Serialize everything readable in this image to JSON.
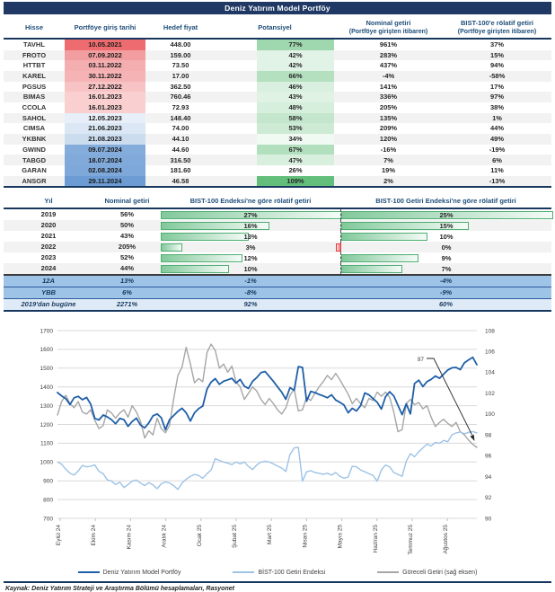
{
  "title": "Deniz Yatırım Model Portföy",
  "portfolio_table": {
    "headers": {
      "hisse": "Hisse",
      "giris": "Portföye giriş tarihi",
      "hedef": "Hedef fiyat",
      "potansiyel": "Potansiyel",
      "nominal_1": "Nominal getiri",
      "nominal_2": "(Portföye girişten itibaren)",
      "relatif_1": "BIST-100'e rölatif getiri",
      "relatif_2": "(Portföye girişten itibaren)"
    },
    "rows": [
      {
        "ticker": "TAVHL",
        "date": "10.05.2021",
        "date_color": "#EE6C6F",
        "target": "448.00",
        "potential": "77%",
        "pot_color": "#9FD7AE",
        "nominal": "961%",
        "relative": "37%"
      },
      {
        "ticker": "FROTO",
        "date": "07.09.2022",
        "date_color": "#F29D9F",
        "target": "159.00",
        "potential": "42%",
        "pot_color": "#E1F2E6",
        "nominal": "283%",
        "relative": "15%"
      },
      {
        "ticker": "HTTBT",
        "date": "03.11.2022",
        "date_color": "#F5AEB0",
        "target": "73.50",
        "potential": "42%",
        "pot_color": "#E1F2E6",
        "nominal": "437%",
        "relative": "94%"
      },
      {
        "ticker": "KAREL",
        "date": "30.11.2022",
        "date_color": "#F5B3B5",
        "target": "17.00",
        "potential": "66%",
        "pot_color": "#B5E0C0",
        "nominal": "-4%",
        "relative": "-58%"
      },
      {
        "ticker": "PGSUS",
        "date": "27.12.2022",
        "date_color": "#F8C3C4",
        "target": "362.50",
        "potential": "46%",
        "pot_color": "#D9EFDF",
        "nominal": "141%",
        "relative": "17%"
      },
      {
        "ticker": "BIMAS",
        "date": "16.01.2023",
        "date_color": "#F9CFD0",
        "target": "760.46",
        "potential": "43%",
        "pot_color": "#DFF2E4",
        "nominal": "336%",
        "relative": "97%"
      },
      {
        "ticker": "CCOLA",
        "date": "16.01.2023",
        "date_color": "#F9CFD0",
        "target": "72.93",
        "potential": "48%",
        "pot_color": "#D6EEDC",
        "nominal": "205%",
        "relative": "38%"
      },
      {
        "ticker": "SAHOL",
        "date": "12.05.2023",
        "date_color": "#E9EFF8",
        "target": "148.40",
        "potential": "58%",
        "pot_color": "#C3E6CC",
        "nominal": "135%",
        "relative": "1%"
      },
      {
        "ticker": "CIMSA",
        "date": "21.06.2023",
        "date_color": "#DBE7F4",
        "target": "74.00",
        "potential": "53%",
        "pot_color": "#CCEAD4",
        "nominal": "209%",
        "relative": "44%"
      },
      {
        "ticker": "YKBNK",
        "date": "21.08.2023",
        "date_color": "#CBDCEF",
        "target": "44.10",
        "potential": "34%",
        "pot_color": "#F0F9F2",
        "nominal": "120%",
        "relative": "49%"
      },
      {
        "ticker": "GWIND",
        "date": "09.07.2024",
        "date_color": "#85ADDB",
        "target": "44.60",
        "potential": "67%",
        "pot_color": "#B2DFBE",
        "nominal": "-16%",
        "relative": "-19%"
      },
      {
        "ticker": "TABGD",
        "date": "18.07.2024",
        "date_color": "#81AADA",
        "target": "316.50",
        "potential": "47%",
        "pot_color": "#D8EFDE",
        "nominal": "7%",
        "relative": "6%"
      },
      {
        "ticker": "GARAN",
        "date": "02.08.2024",
        "date_color": "#7EA8D9",
        "target": "181.60",
        "potential": "26%",
        "pot_color": "#FDFEFD",
        "nominal": "19%",
        "relative": "11%"
      },
      {
        "ticker": "ANSGR",
        "date": "29.11.2024",
        "date_color": "#6C9CD3",
        "target": "46.58",
        "potential": "109%",
        "pot_color": "#63BE7B",
        "nominal": "2%",
        "relative": "-13%"
      }
    ]
  },
  "yearly_table": {
    "headers": [
      "Yıl",
      "Nominal getiri",
      "BIST-100 Endeksi'ne göre rölatif getiri",
      "BIST-100 Getiri Endeksi'ne göre rölatif getiri"
    ],
    "bar_scale": {
      "col1_max": 27,
      "col2_max": 25
    },
    "rows": [
      {
        "year": "2019",
        "nominal": "56%",
        "rel1": "27%",
        "rel1_val": 27,
        "rel2": "25%",
        "rel2_val": 25
      },
      {
        "year": "2020",
        "nominal": "50%",
        "rel1": "16%",
        "rel1_val": 16,
        "rel2": "15%",
        "rel2_val": 15
      },
      {
        "year": "2021",
        "nominal": "43%",
        "rel1": "13%",
        "rel1_val": 13,
        "rel2": "10%",
        "rel2_val": 10
      },
      {
        "year": "2022",
        "nominal": "205%",
        "rel1": "3%",
        "rel1_val": 3,
        "rel2": "0%",
        "rel2_val": -0.5
      },
      {
        "year": "2023",
        "nominal": "52%",
        "rel1": "12%",
        "rel1_val": 12,
        "rel2": "9%",
        "rel2_val": 9
      },
      {
        "year": "2024",
        "nominal": "44%",
        "rel1": "10%",
        "rel1_val": 10,
        "rel2": "7%",
        "rel2_val": 7
      }
    ],
    "summary_rows": [
      {
        "label": "12A",
        "nominal": "13%",
        "rel1": "-1%",
        "rel2": "-4%"
      },
      {
        "label": "YBB",
        "nominal": "6%",
        "rel1": "-8%",
        "rel2": "-9%"
      },
      {
        "label": "2019'dan bugüne",
        "nominal": "2271%",
        "rel1": "92%",
        "rel2": "60%"
      }
    ]
  },
  "chart_data": {
    "type": "line",
    "x_labels": [
      "Eylül 24",
      "Ekim 24",
      "Kasım 24",
      "Aralık 24",
      "Ocak 25",
      "Şubat 25",
      "Mart 25",
      "Nisan 25",
      "Mayıs 25",
      "Haziran 25",
      "Temmuz 25",
      "Ağustos 25"
    ],
    "left_axis": {
      "min": 700,
      "max": 1700,
      "step": 100
    },
    "right_axis": {
      "min": 90,
      "max": 108,
      "step": 2
    },
    "annotation": {
      "text": "97"
    },
    "legend_position": "bottom",
    "grid": true,
    "series": [
      {
        "name": "Deniz Yatırım Model Portföy",
        "color": "#1F5FA8",
        "axis": "left",
        "width": 1.8,
        "values": [
          1370,
          1352,
          1338,
          1306,
          1342,
          1350,
          1332,
          1344,
          1308,
          1232,
          1224,
          1250,
          1240,
          1226,
          1204,
          1232,
          1226,
          1190,
          1216,
          1234,
          1196,
          1182,
          1208,
          1246,
          1256,
          1236,
          1172,
          1226,
          1248,
          1270,
          1286,
          1262,
          1218,
          1262,
          1284,
          1298,
          1388,
          1426,
          1444,
          1414,
          1430,
          1438,
          1446,
          1420,
          1440,
          1404,
          1392,
          1430,
          1450,
          1476,
          1482,
          1456,
          1430,
          1400,
          1372,
          1334,
          1396,
          1382,
          1508,
          1504,
          1324,
          1376,
          1370,
          1360,
          1352,
          1342,
          1358,
          1330,
          1318,
          1304,
          1262,
          1286,
          1272,
          1300,
          1368,
          1358,
          1338,
          1318,
          1282,
          1348,
          1374,
          1352,
          1302,
          1252,
          1310,
          1256,
          1418,
          1436,
          1402,
          1428,
          1440,
          1458,
          1446,
          1468,
          1490,
          1502,
          1504,
          1492,
          1528,
          1544,
          1558,
          1518
        ]
      },
      {
        "name": "BİST-100 Getiri Endeksi",
        "color": "#9DC3E6",
        "axis": "left",
        "width": 1.4,
        "values": [
          1000,
          988,
          962,
          940,
          930,
          952,
          982,
          974,
          978,
          984,
          950,
          938,
          905,
          898,
          880,
          893,
          864,
          880,
          898,
          904,
          888,
          874,
          890,
          878,
          858,
          884,
          894,
          888,
          874,
          854,
          888,
          908,
          924,
          934,
          928,
          914,
          938,
          958,
          1018,
          1008,
          1000,
          994,
          986,
          1000,
          990,
          1000,
          976,
          960,
          984,
          1000,
          1004,
          1000,
          990,
          978,
          968,
          950,
          1040,
          1075,
          1078,
          898,
          948,
          954,
          944,
          940,
          934,
          940,
          930,
          944,
          924,
          914,
          920,
          978,
          974,
          958,
          948,
          938,
          928,
          898,
          958,
          984,
          974,
          944,
          934,
          924,
          1005,
          1045,
          1028,
          1055,
          1075,
          1095,
          1085,
          1105,
          1100,
          1115,
          1108,
          1145,
          1155,
          1160,
          1150,
          1158,
          1162,
          1155
        ]
      },
      {
        "name": "Göreceli Getiri (sağ eksen)",
        "color": "#A6A6A6",
        "axis": "right",
        "width": 1.4,
        "values": [
          99.9,
          101.2,
          101.8,
          101.0,
          100.6,
          101.2,
          100.2,
          100.0,
          100.4,
          99.4,
          98.6,
          98.9,
          100.4,
          100.1,
          99.6,
          100.1,
          100.4,
          99.7,
          100.8,
          100.2,
          99.3,
          97.7,
          98.4,
          98.0,
          99.6,
          98.6,
          98.2,
          98.9,
          101.5,
          103.7,
          104.5,
          106.4,
          104.8,
          103.0,
          103.4,
          103.1,
          105.9,
          106.7,
          106.1,
          104.4,
          104.8,
          104.0,
          104.6,
          103.1,
          102.6,
          101.4,
          102.0,
          102.6,
          102.2,
          101.4,
          100.9,
          101.5,
          101.0,
          100.4,
          100.0,
          100.6,
          101.8,
          102.4,
          100.3,
          100.4,
          101.6,
          101.3,
          102.0,
          102.6,
          103.1,
          103.7,
          103.3,
          103.9,
          103.3,
          102.6,
          101.9,
          101.0,
          101.5,
          101.0,
          100.6,
          101.5,
          101.3,
          102.1,
          101.7,
          102.1,
          101.6,
          100.2,
          98.3,
          98.5,
          101.0,
          101.4,
          100.9,
          101.1,
          100.5,
          100.8,
          99.7,
          98.8,
          99.2,
          99.5,
          99.1,
          98.8,
          99.2,
          98.3,
          98.0,
          97.5,
          97.1,
          96.8
        ]
      }
    ]
  },
  "footer": {
    "source": "Kaynak: Deniz Yatırım Strateji ve Araştırma Bölümü hesaplamaları, Rasyonet"
  },
  "colors": {
    "navy_bar": "#1F3864",
    "header_text": "#1F4E79",
    "bar_green": "#63BE7B",
    "bar_red": "#F8696B",
    "row_alt": "#F2F2F2",
    "summary_blue": "#9DC3E6",
    "summary_light_blue": "#DEEBF7"
  }
}
